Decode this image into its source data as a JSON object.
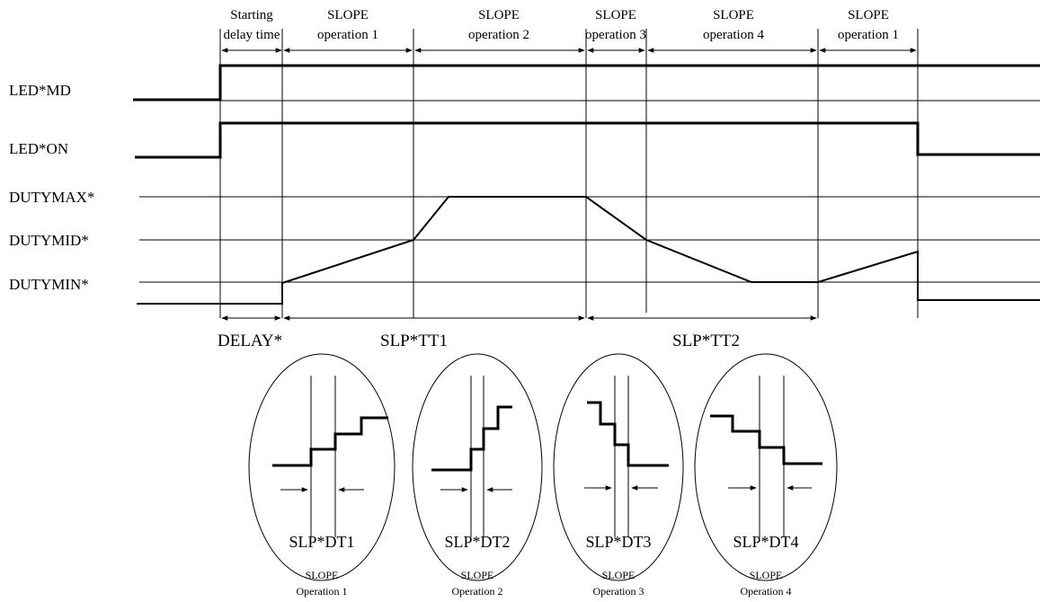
{
  "header_labels": [
    {
      "line1": "Starting",
      "line2": "delay time"
    },
    {
      "line1": "SLOPE",
      "line2": "operation 1"
    },
    {
      "line1": "SLOPE",
      "line2": "operation 2"
    },
    {
      "line1": "SLOPE",
      "line2": "operation 3"
    },
    {
      "line1": "SLOPE",
      "line2": "operation 4"
    },
    {
      "line1": "SLOPE",
      "line2": "operation 1"
    }
  ],
  "signals": {
    "led_md": "LED*MD",
    "led_on": "LED*ON",
    "duty_max": "DUTYMAX*",
    "duty_mid": "DUTYMID*",
    "duty_min": "DUTYMIN*"
  },
  "bottom_labels": {
    "delay": "DELAY*",
    "tt1": "SLP*TT1",
    "tt2": "SLP*TT2"
  },
  "insets": [
    {
      "dt_label": "SLP*DT1",
      "caption1": "SLOPE",
      "caption2": "Operation 1"
    },
    {
      "dt_label": "SLP*DT2",
      "caption1": "SLOPE",
      "caption2": "Operation 2"
    },
    {
      "dt_label": "SLP*DT3",
      "caption1": "SLOPE",
      "caption2": "Operation 3"
    },
    {
      "dt_label": "SLP*DT4",
      "caption1": "SLOPE",
      "caption2": "Operation 4"
    }
  ]
}
